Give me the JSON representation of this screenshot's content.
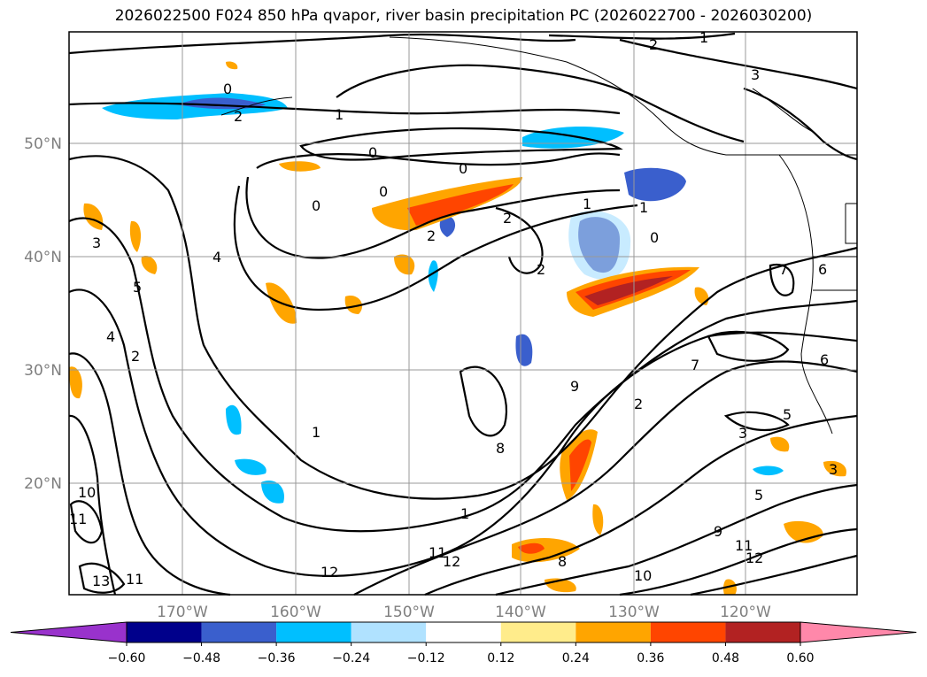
{
  "title": "2026022500 F024 850 hPa qvapor, river basin precipitation PC (2026022700 - 2026030200)",
  "lat_labels": [
    "50°N",
    "40°N",
    "30°N",
    "20°N"
  ],
  "lon_labels": [
    "170°W",
    "160°W",
    "150°W",
    "140°W",
    "130°W",
    "120°W"
  ],
  "colorbar": {
    "ticks": [
      "−0.60",
      "−0.48",
      "−0.36",
      "−0.24",
      "−0.12",
      "0.12",
      "0.24",
      "0.36",
      "0.48",
      "0.60"
    ],
    "colors": [
      "#9932cc",
      "#00008b",
      "#3a5fcd",
      "#00bfff",
      "#b0e2ff",
      "#ffffff",
      "#ffec8b",
      "#ffa500",
      "#ff4500",
      "#b22222",
      "#ff88aa"
    ]
  },
  "contour_labels": [
    "1",
    "2",
    "3",
    "0",
    "1",
    "2",
    "0",
    "0",
    "0",
    "0",
    "2",
    "1",
    "0",
    "2",
    "1",
    "2",
    "4",
    "5",
    "3",
    "4",
    "2",
    "9",
    "8",
    "7",
    "6",
    "5",
    "3",
    "1",
    "10",
    "11",
    "13",
    "11",
    "12",
    "12",
    "11",
    "10",
    "11",
    "12",
    "9",
    "8",
    "5",
    "3",
    "2",
    "1",
    "7",
    "6"
  ]
}
